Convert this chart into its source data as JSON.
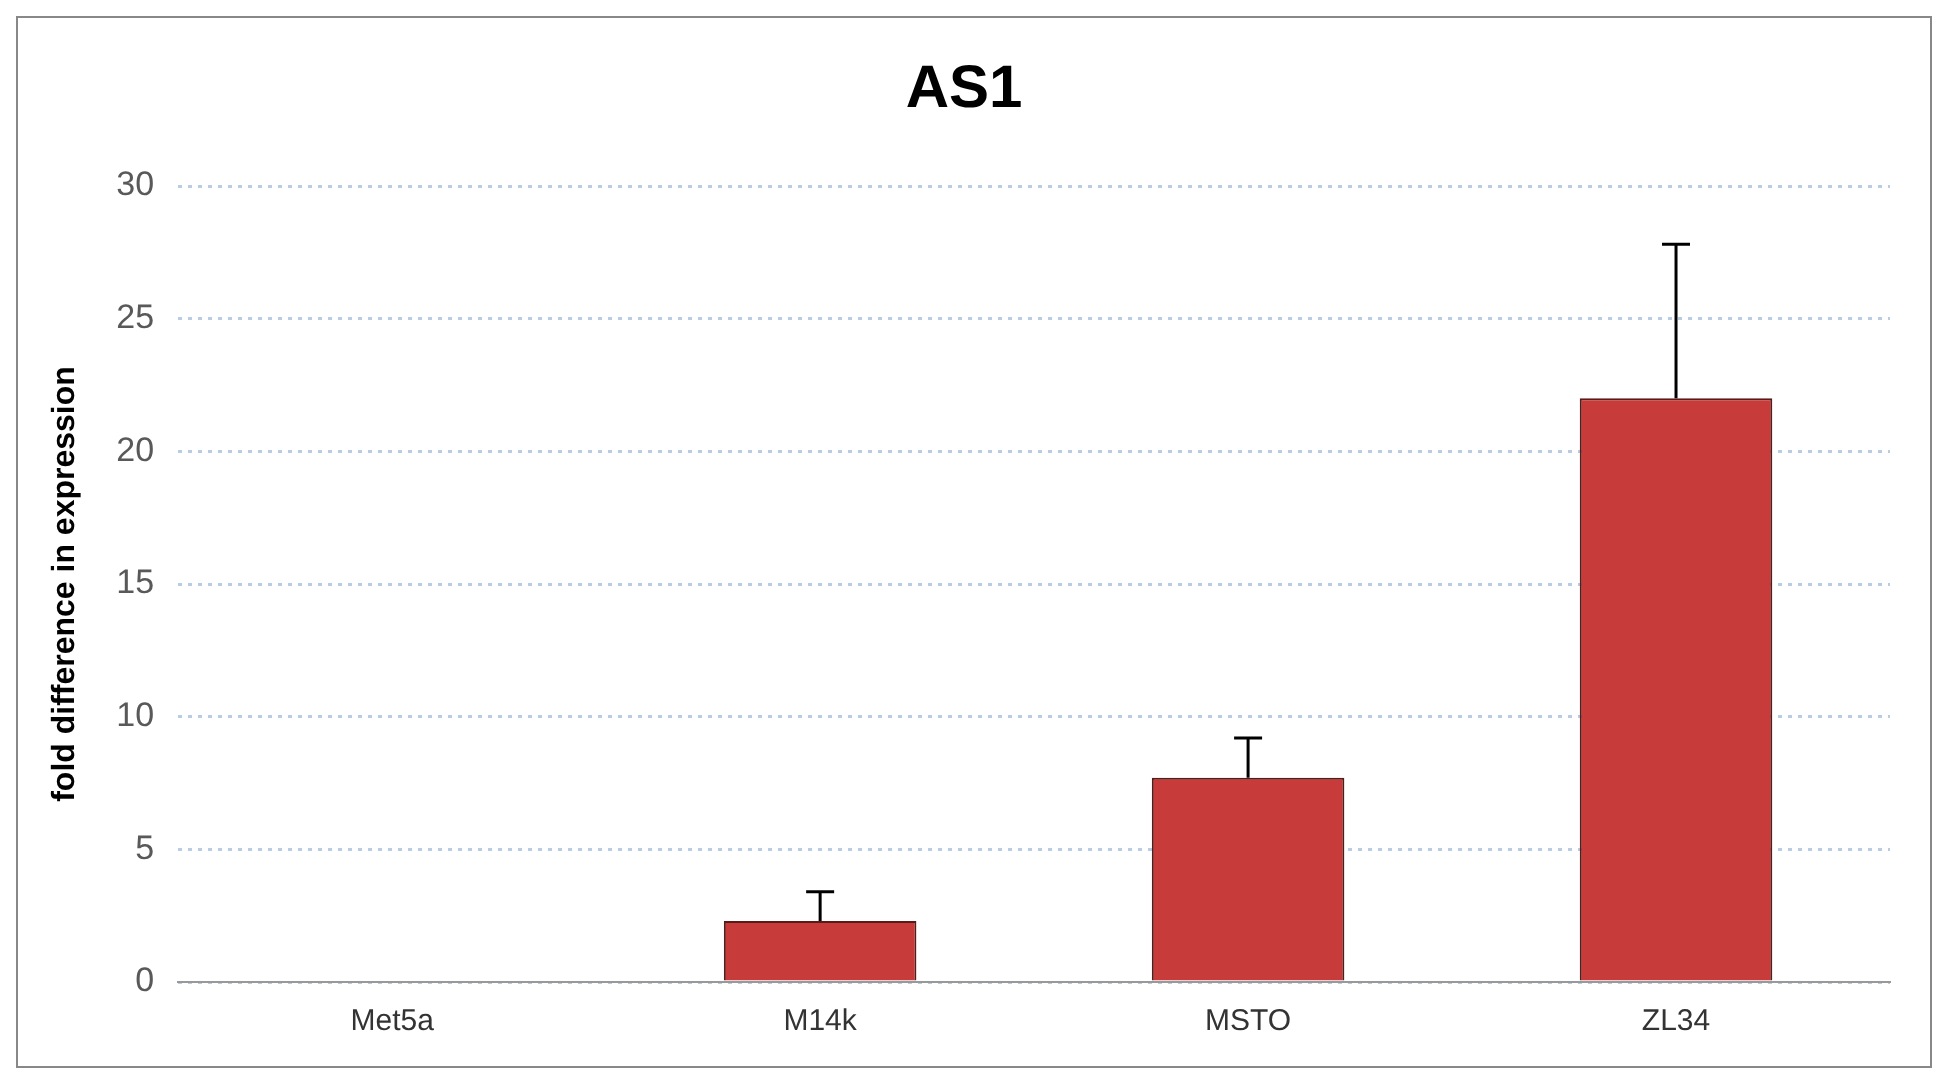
{
  "chart_data": {
    "type": "bar",
    "title": "AS1",
    "ylabel": "fold difference in expression",
    "categories": [
      "Met5a",
      "M14k",
      "MSTO",
      "ZL34"
    ],
    "values": [
      0,
      2.3,
      7.7,
      22.0
    ],
    "color": "#c73c3a",
    "errors": [
      null,
      [
        2.3,
        3.4
      ],
      [
        7.7,
        9.2
      ],
      [
        22.0,
        27.8
      ]
    ],
    "ylim": [
      0,
      30
    ],
    "yticks": [
      0,
      5,
      10,
      15,
      20,
      25,
      30
    ],
    "grid": "y",
    "legend": false
  }
}
